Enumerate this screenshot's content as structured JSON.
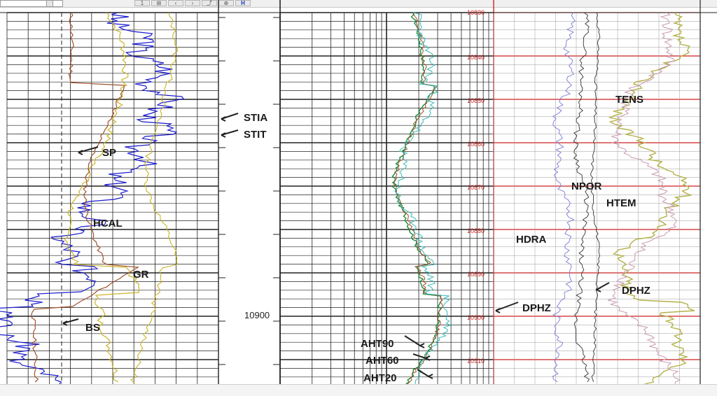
{
  "toolbar": {
    "buttons": [
      "1",
      "⊞",
      "‹",
      "›",
      "⤴",
      "⊕",
      "H"
    ]
  },
  "depth_track": {
    "labels": [
      "10900"
    ],
    "markers": [
      "STIA",
      "STIT"
    ]
  },
  "left_track": {
    "curve_labels": [
      "SP",
      "HCAL",
      "GR",
      "BS"
    ]
  },
  "resistivity_track": {
    "curve_labels": [
      "AHT90",
      "AHT60",
      "AHT20"
    ]
  },
  "porosity_track": {
    "depth_labels": [
      "10830",
      "10840",
      "10850",
      "10860",
      "10870",
      "10880",
      "10890",
      "10900",
      "10910"
    ],
    "curve_labels": [
      "TENS",
      "NPOR",
      "HTEM",
      "HDRA",
      "DPHZ",
      "DPHZ"
    ]
  },
  "colors": {
    "grid": "#222222",
    "red_grid": "#cc2222",
    "gr_blue": "#1a1acc",
    "sp_yellow": "#c8b428",
    "brown": "#a0522d",
    "res_green": "#1a8a3a",
    "res_cyan": "#3ab8b8"
  }
}
